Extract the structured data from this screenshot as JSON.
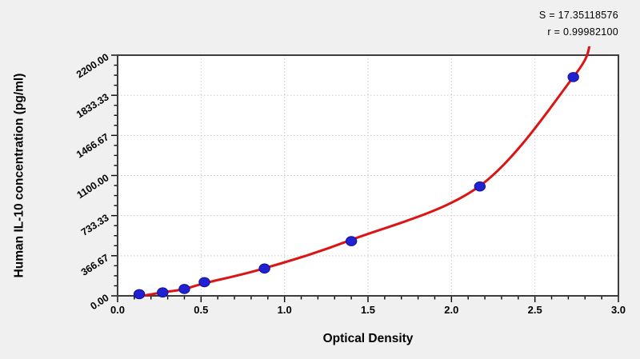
{
  "figure": {
    "background": "#f0f0f0",
    "stats": {
      "line1": "S = 17.35118576",
      "line2": "r = 0.99982100"
    }
  },
  "chart_data": {
    "type": "scatter",
    "title": "",
    "xlabel": "Optical Density",
    "ylabel": "Human IL-10 concentration (pg/ml)",
    "xlim": [
      0,
      3.0
    ],
    "ylim": [
      0,
      2200
    ],
    "x_tick_labels": [
      "0.0",
      "0.5",
      "1.0",
      "1.5",
      "2.0",
      "2.5",
      "3.0"
    ],
    "x_tick_values": [
      0,
      0.5,
      1.0,
      1.5,
      2.0,
      2.5,
      3.0
    ],
    "y_tick_labels": [
      "0.00",
      "366.67",
      "733.33",
      "1100.00",
      "1466.67",
      "1833.33",
      "2200.00"
    ],
    "y_tick_values": [
      0,
      366.67,
      733.33,
      1100.0,
      1466.67,
      1833.33,
      2200.0
    ],
    "x_minor_step": 0.1,
    "y_minor_step": 91.667,
    "grid": "dotted gridlines at major ticks, both axes",
    "legend_position": "none",
    "points": [
      {
        "x": 0.13,
        "y": 15.6
      },
      {
        "x": 0.27,
        "y": 31.25
      },
      {
        "x": 0.4,
        "y": 62.5
      },
      {
        "x": 0.52,
        "y": 125
      },
      {
        "x": 0.88,
        "y": 250
      },
      {
        "x": 1.4,
        "y": 500
      },
      {
        "x": 2.17,
        "y": 1000
      },
      {
        "x": 2.73,
        "y": 2000
      }
    ],
    "fit_curve": {
      "S": "17.35118576",
      "r": "0.99982100",
      "anchors": [
        [
          0.155,
          2
        ],
        [
          0.27,
          31
        ],
        [
          0.4,
          62
        ],
        [
          0.52,
          115
        ],
        [
          0.88,
          252
        ],
        [
          1.4,
          512
        ],
        [
          2.17,
          1005
        ],
        [
          2.73,
          2000
        ],
        [
          2.83,
          2295
        ]
      ]
    },
    "colors": {
      "curve": "#dc1414",
      "marker_fill": "#2121cf",
      "marker_edge": "#0e0ea0",
      "frame": "#3c3c3c",
      "grid": "#c9c9c9",
      "plot_bg": "#ffffff",
      "figure_bg": "#f0f0f0"
    }
  }
}
